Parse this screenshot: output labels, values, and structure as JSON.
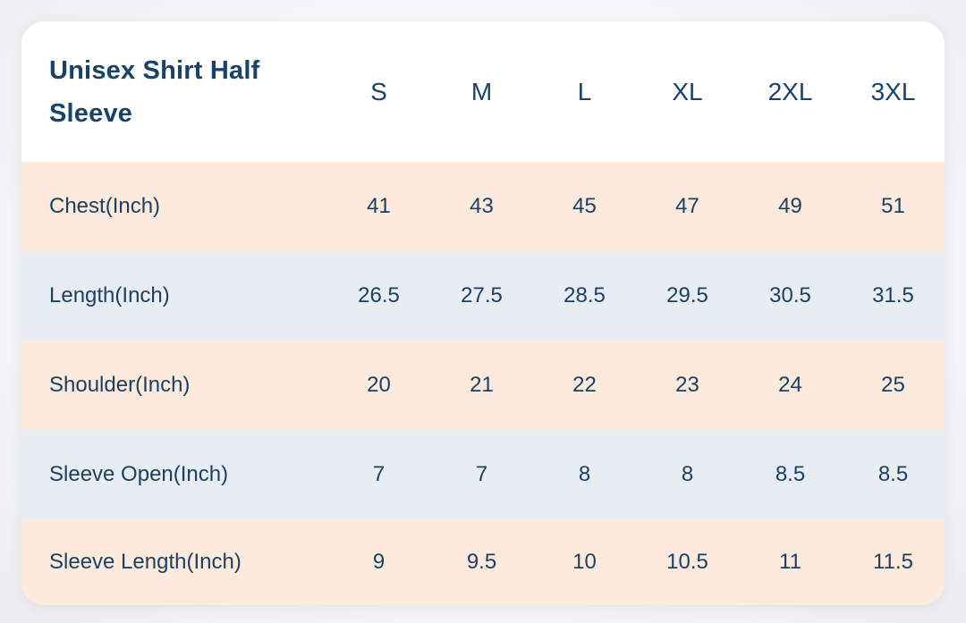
{
  "colors": {
    "page_background": "#f4f4f6",
    "card_background": "#ffffff",
    "row_peach": "#fceadc",
    "row_blue": "#e7edf2",
    "text_navy": "#17436b"
  },
  "size_chart": {
    "title": "Unisex Shirt Half Sleeve",
    "size_headers": [
      "S",
      "M",
      "L",
      "XL",
      "2XL",
      "3XL"
    ],
    "rows": [
      {
        "label": "Chest(Inch)",
        "values": [
          "41",
          "43",
          "45",
          "47",
          "49",
          "51"
        ]
      },
      {
        "label": "Length(Inch)",
        "values": [
          "26.5",
          "27.5",
          "28.5",
          "29.5",
          "30.5",
          "31.5"
        ]
      },
      {
        "label": "Shoulder(Inch)",
        "values": [
          "20",
          "21",
          "22",
          "23",
          "24",
          "25"
        ]
      },
      {
        "label": "Sleeve Open(Inch)",
        "values": [
          "7",
          "7",
          "8",
          "8",
          "8.5",
          "8.5"
        ]
      },
      {
        "label": "Sleeve Length(Inch)",
        "values": [
          "9",
          "9.5",
          "10",
          "10.5",
          "11",
          "11.5"
        ]
      }
    ]
  }
}
